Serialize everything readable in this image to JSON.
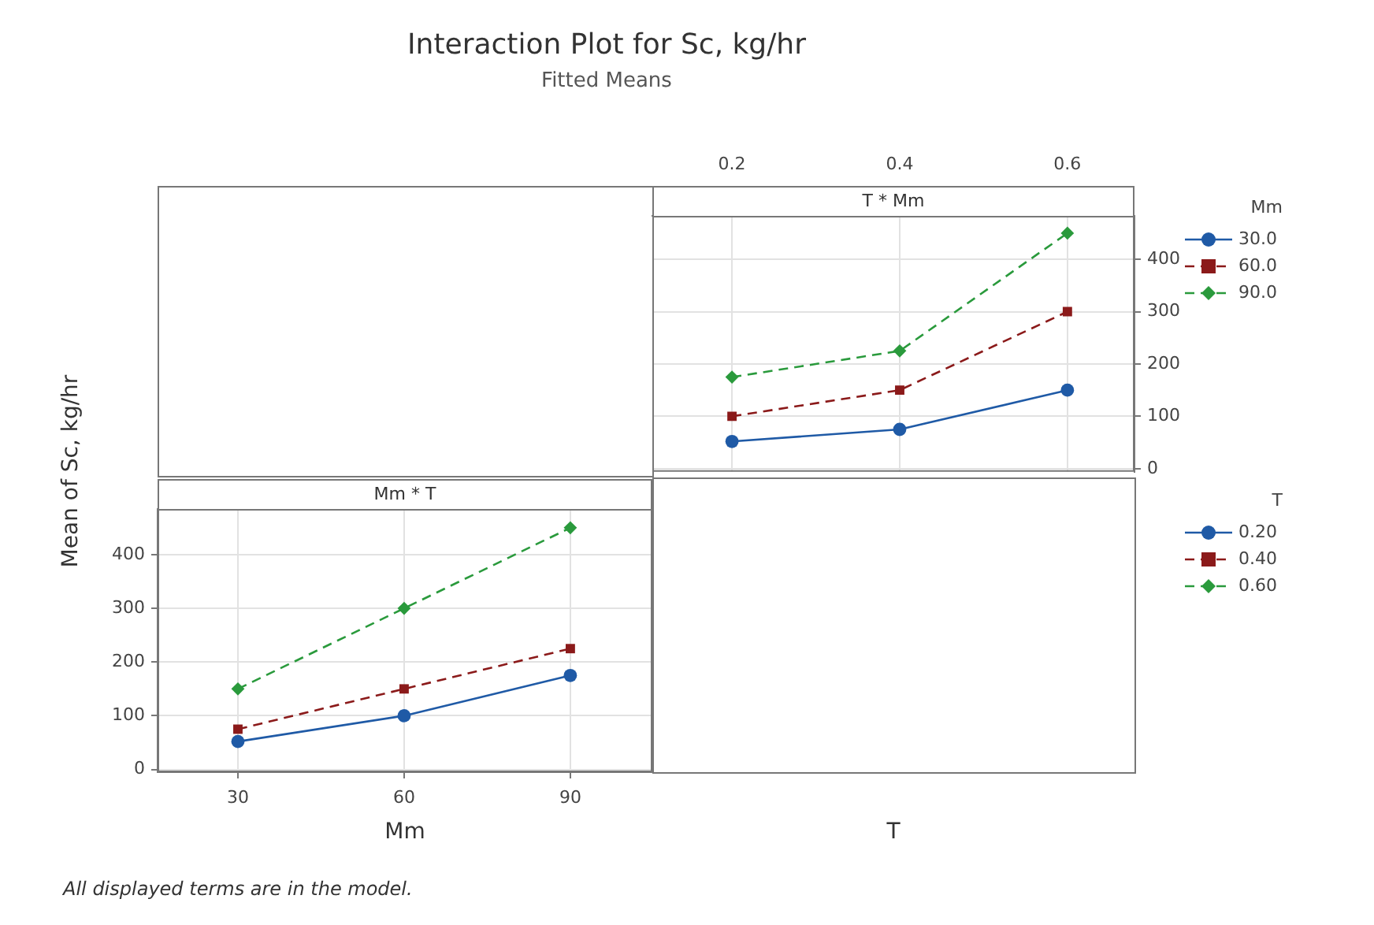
{
  "chart_data": [
    {
      "type": "line",
      "title": "Interaction Plot for Sc, kg/hr",
      "subtitle": "Fitted Means",
      "annotations": [
        "T * Mm"
      ],
      "xlabel": "T",
      "legend_title": "Mm",
      "legend": "right",
      "grid": true,
      "x": [
        0.2,
        0.4,
        0.6
      ],
      "xlim": [
        0.105,
        0.68
      ],
      "xticks": [
        0.2,
        0.4,
        0.6
      ],
      "ylim": [
        -6,
        483
      ],
      "yticks": [
        0,
        100,
        200,
        300,
        400
      ],
      "series": [
        {
          "name": "30.0",
          "color": "#1f5aa6",
          "marker": "circle",
          "line_style": "solid",
          "values": [
            52,
            75,
            150
          ]
        },
        {
          "name": "60.0",
          "color": "#8b1a1a",
          "marker": "square",
          "line_style": "dashed",
          "values": [
            100,
            150,
            300
          ]
        },
        {
          "name": "90.0",
          "color": "#2a9a3c",
          "marker": "diamond",
          "line_style": "dashed",
          "values": [
            175,
            225,
            450
          ]
        }
      ]
    },
    {
      "type": "line",
      "title": "Mm * T",
      "annotations": [
        "All displayed terms are in the model."
      ],
      "xlabel": "Mm",
      "ylabel": "Mean of Sc, kg/hr",
      "legend_title": "T",
      "legend": "right",
      "grid": true,
      "x": [
        30,
        60,
        90
      ],
      "xlim": [
        15.5,
        104.8
      ],
      "xticks": [
        30,
        60,
        90
      ],
      "ylim": [
        -5,
        485
      ],
      "yticks": [
        0,
        100,
        200,
        300,
        400
      ],
      "series": [
        {
          "name": "0.20",
          "color": "#1f5aa6",
          "marker": "circle",
          "line_style": "solid",
          "values": [
            52,
            100,
            175
          ]
        },
        {
          "name": "0.40",
          "color": "#8b1a1a",
          "marker": "square",
          "line_style": "dashed",
          "values": [
            75,
            150,
            225
          ]
        },
        {
          "name": "0.60",
          "color": "#2a9a3c",
          "marker": "diamond",
          "line_style": "dashed",
          "values": [
            150,
            300,
            450
          ]
        }
      ]
    }
  ]
}
